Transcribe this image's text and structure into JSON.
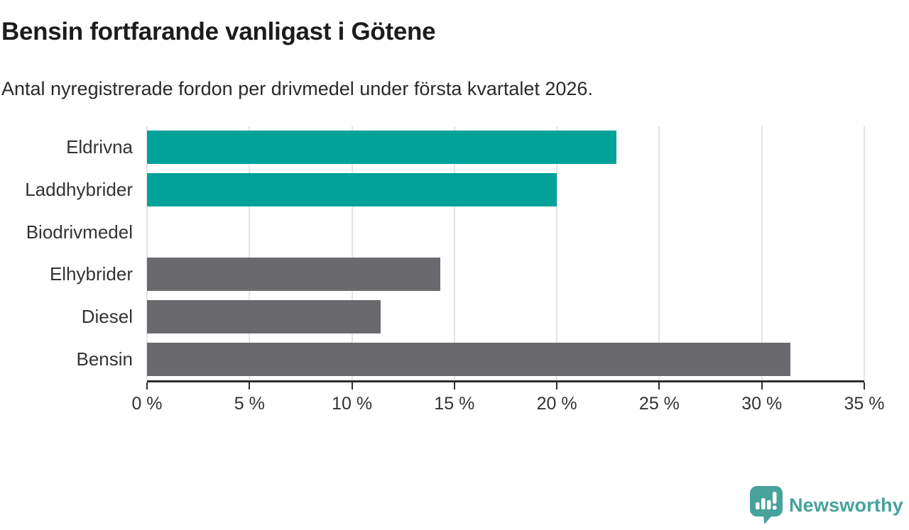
{
  "header": {
    "title": "Bensin fortfarande vanligast i Götene",
    "subtitle": "Antal nyregistrerade fordon per drivmedel under första kvartalet 2026."
  },
  "chart_data": {
    "type": "bar",
    "orientation": "horizontal",
    "title": "Bensin fortfarande vanligast i Götene",
    "subtitle": "Antal nyregistrerade fordon per drivmedel under första kvartalet 2026.",
    "categories": [
      "Eldrivna",
      "Laddhybrider",
      "Biodrivmedel",
      "Elhybrider",
      "Diesel",
      "Bensin"
    ],
    "values": [
      22.9,
      20.0,
      0.0,
      14.3,
      11.4,
      31.4
    ],
    "unit": "%",
    "bar_colors": [
      "#00A29A",
      "#00A29A",
      "#00A29A",
      "#6A696D",
      "#6A696D",
      "#6A696D"
    ],
    "highlight_color": "#00A29A",
    "base_color": "#6A696D",
    "xlim": [
      0,
      35
    ],
    "x_ticks": [
      0,
      5,
      10,
      15,
      20,
      25,
      30,
      35
    ],
    "x_tick_labels": [
      "0 %",
      "5 %",
      "10 %",
      "15 %",
      "20 %",
      "25 %",
      "30 %",
      "35 %"
    ],
    "grid": "vertical",
    "legend": "none"
  },
  "footer": {
    "brand": "Newsworthy",
    "brand_color": "#47A29B",
    "logo_icon": "bar-chart-speech-bubble-icon"
  }
}
